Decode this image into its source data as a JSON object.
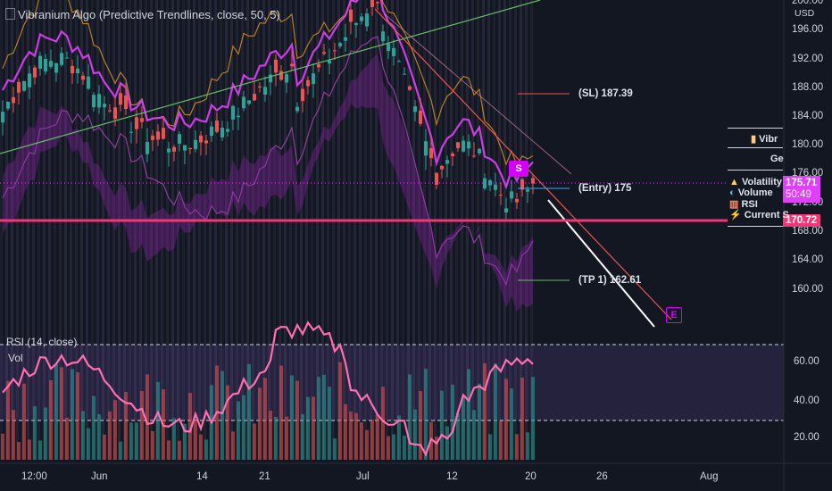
{
  "header": {
    "indicator_label": "Vibranium Algo (Predictive Trendlines, close, 50, 5)"
  },
  "currency": "USD",
  "price_axis": {
    "labels": [
      "200.00",
      "196.00",
      "192.00",
      "188.00",
      "184.00",
      "180.00",
      "176.00",
      "172.00",
      "168.00",
      "164.00",
      "160.00"
    ]
  },
  "rsi_axis": {
    "labels": [
      "60.00",
      "40.00",
      "20.00"
    ]
  },
  "time_axis": {
    "labels": [
      "12:00",
      "Jun",
      "14",
      "21",
      "Jul",
      "12",
      "20",
      "26",
      "Aug"
    ]
  },
  "last_price": {
    "value": "175.71",
    "countdown": "50:49",
    "color": "#e040fb"
  },
  "level_tag": {
    "value": "170.72",
    "color": "#f23676"
  },
  "levels": {
    "sl": "(SL) 187.39",
    "entry": "(Entry) 175",
    "tp1": "(TP 1) 162.61"
  },
  "signals": {
    "short": "S",
    "end": "E"
  },
  "panes": {
    "rsi": "RSI (14, close)",
    "volume": "Vol"
  },
  "info_table": {
    "title": "Vibr",
    "subtitle": "Ge",
    "rows": [
      {
        "icon": "warning-icon",
        "label": "Volatility"
      },
      {
        "icon": "wave-icon",
        "label": "Volume"
      },
      {
        "icon": "bar-chart-icon",
        "label": "RSI"
      },
      {
        "icon": "lightning-icon",
        "label": "Current S"
      }
    ]
  },
  "colors": {
    "background": "#131722",
    "bull": "#26a69a",
    "bear": "#ef5350",
    "rsi_line": "#ff6fb0",
    "band": "#7b1fa2",
    "trend": "#4caf50"
  },
  "chart_data": {
    "type": "candlestick",
    "ylim": [
      158,
      201
    ],
    "levels": {
      "sl": 187.39,
      "entry": 175,
      "tp1": 162.61,
      "support": 170.72,
      "last": 175.71
    },
    "rsi_levels": [
      70,
      30
    ]
  }
}
